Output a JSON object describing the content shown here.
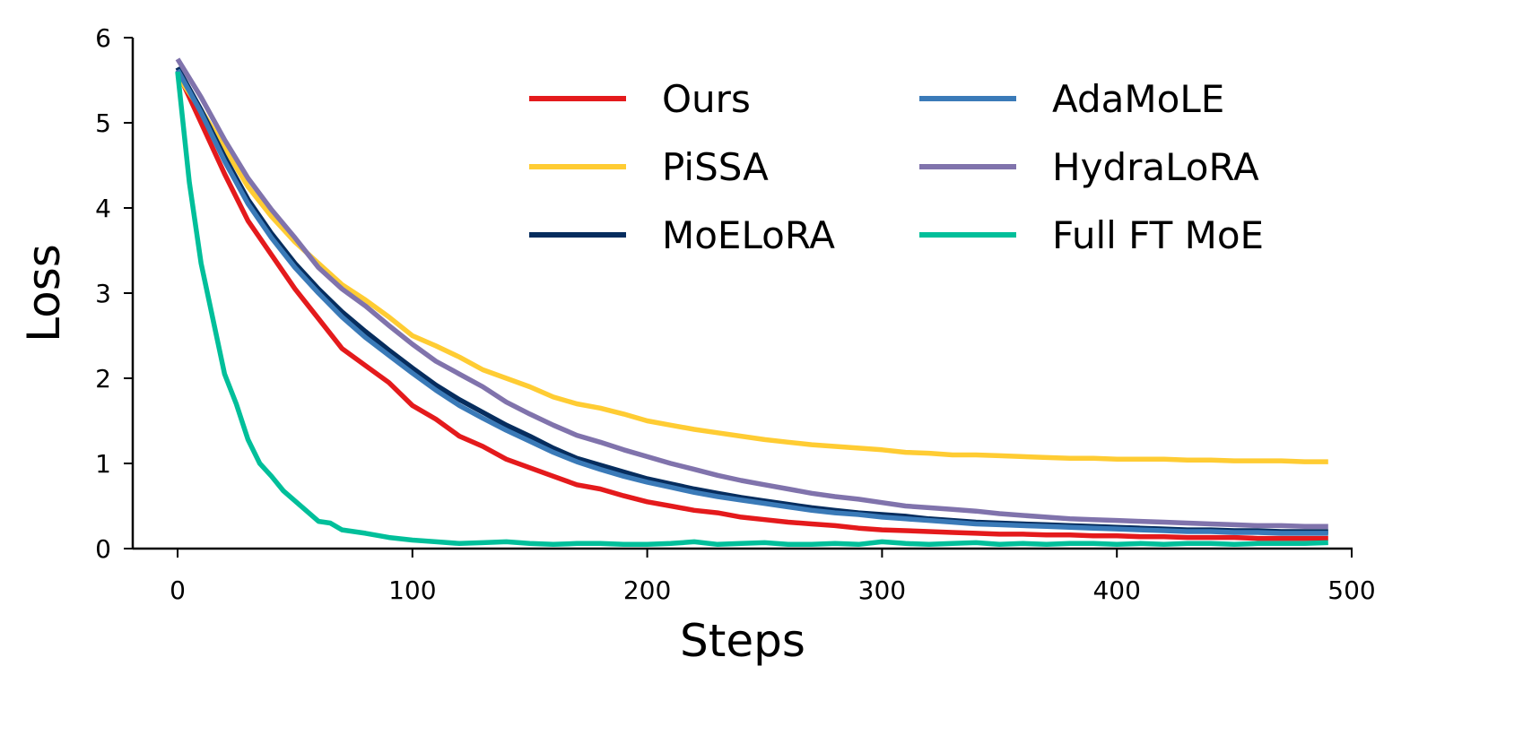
{
  "chart_data": {
    "type": "line",
    "title": "",
    "xlabel": "Steps",
    "ylabel": "Loss",
    "xlim": [
      -20,
      500
    ],
    "ylim": [
      0,
      6
    ],
    "xticks": [
      0,
      100,
      200,
      300,
      400,
      500
    ],
    "yticks": [
      0,
      1,
      2,
      3,
      4,
      5,
      6
    ],
    "grid": false,
    "legend_position": "top-right",
    "series": [
      {
        "name": "Ours",
        "color": "#e41a1c",
        "x": [
          0,
          10,
          20,
          30,
          40,
          50,
          60,
          70,
          80,
          90,
          100,
          110,
          120,
          130,
          140,
          150,
          160,
          170,
          180,
          190,
          200,
          210,
          220,
          230,
          240,
          250,
          260,
          270,
          280,
          290,
          300,
          310,
          320,
          330,
          340,
          350,
          360,
          370,
          380,
          390,
          400,
          410,
          420,
          430,
          440,
          450,
          460,
          470,
          480,
          490
        ],
        "y": [
          5.6,
          5.0,
          4.4,
          3.85,
          3.45,
          3.05,
          2.7,
          2.35,
          2.15,
          1.95,
          1.68,
          1.52,
          1.32,
          1.2,
          1.05,
          0.95,
          0.85,
          0.75,
          0.7,
          0.62,
          0.55,
          0.5,
          0.45,
          0.42,
          0.37,
          0.34,
          0.31,
          0.29,
          0.27,
          0.24,
          0.22,
          0.21,
          0.2,
          0.19,
          0.18,
          0.17,
          0.17,
          0.16,
          0.16,
          0.15,
          0.15,
          0.14,
          0.14,
          0.13,
          0.13,
          0.13,
          0.12,
          0.12,
          0.12,
          0.12
        ]
      },
      {
        "name": "PiSSA",
        "color": "#ffcc33",
        "x": [
          0,
          10,
          20,
          30,
          40,
          50,
          60,
          70,
          80,
          90,
          100,
          110,
          120,
          130,
          140,
          150,
          160,
          170,
          180,
          190,
          200,
          210,
          220,
          230,
          240,
          250,
          260,
          270,
          280,
          290,
          300,
          310,
          320,
          330,
          340,
          350,
          360,
          370,
          380,
          390,
          400,
          410,
          420,
          430,
          440,
          450,
          460,
          470,
          480,
          490
        ],
        "y": [
          5.55,
          5.15,
          4.7,
          4.25,
          3.9,
          3.6,
          3.35,
          3.1,
          2.92,
          2.72,
          2.5,
          2.38,
          2.25,
          2.1,
          2.0,
          1.9,
          1.78,
          1.7,
          1.65,
          1.58,
          1.5,
          1.45,
          1.4,
          1.36,
          1.32,
          1.28,
          1.25,
          1.22,
          1.2,
          1.18,
          1.16,
          1.13,
          1.12,
          1.1,
          1.1,
          1.09,
          1.08,
          1.07,
          1.06,
          1.06,
          1.05,
          1.05,
          1.05,
          1.04,
          1.04,
          1.03,
          1.03,
          1.03,
          1.02,
          1.02
        ]
      },
      {
        "name": "MoELoRA",
        "color": "#062d5e",
        "x": [
          0,
          10,
          20,
          30,
          40,
          50,
          60,
          70,
          80,
          90,
          100,
          110,
          120,
          130,
          140,
          150,
          160,
          170,
          180,
          190,
          200,
          210,
          220,
          230,
          240,
          250,
          260,
          270,
          280,
          290,
          300,
          310,
          320,
          330,
          340,
          350,
          360,
          370,
          380,
          390,
          400,
          410,
          420,
          430,
          440,
          450,
          460,
          470,
          480,
          490
        ],
        "y": [
          5.65,
          5.15,
          4.6,
          4.1,
          3.7,
          3.35,
          3.05,
          2.78,
          2.55,
          2.33,
          2.12,
          1.92,
          1.75,
          1.6,
          1.45,
          1.32,
          1.18,
          1.06,
          0.98,
          0.9,
          0.82,
          0.76,
          0.7,
          0.65,
          0.6,
          0.56,
          0.52,
          0.48,
          0.45,
          0.42,
          0.4,
          0.38,
          0.35,
          0.33,
          0.31,
          0.3,
          0.29,
          0.28,
          0.27,
          0.26,
          0.25,
          0.24,
          0.23,
          0.22,
          0.22,
          0.21,
          0.21,
          0.2,
          0.2,
          0.2
        ]
      },
      {
        "name": "AdaMoLE",
        "color": "#3a7ab8",
        "x": [
          0,
          10,
          20,
          30,
          40,
          50,
          60,
          70,
          80,
          90,
          100,
          110,
          120,
          130,
          140,
          150,
          160,
          170,
          180,
          190,
          200,
          210,
          220,
          230,
          240,
          250,
          260,
          270,
          280,
          290,
          300,
          310,
          320,
          330,
          340,
          350,
          360,
          370,
          380,
          390,
          400,
          410,
          420,
          430,
          440,
          450,
          460,
          470,
          480,
          490
        ],
        "y": [
          5.62,
          5.12,
          4.55,
          4.05,
          3.65,
          3.3,
          3.0,
          2.72,
          2.48,
          2.27,
          2.06,
          1.86,
          1.68,
          1.53,
          1.39,
          1.26,
          1.13,
          1.02,
          0.93,
          0.85,
          0.78,
          0.72,
          0.66,
          0.61,
          0.57,
          0.53,
          0.49,
          0.45,
          0.42,
          0.4,
          0.37,
          0.35,
          0.33,
          0.31,
          0.29,
          0.28,
          0.27,
          0.26,
          0.25,
          0.24,
          0.23,
          0.22,
          0.21,
          0.2,
          0.2,
          0.19,
          0.19,
          0.18,
          0.18,
          0.18
        ]
      },
      {
        "name": "HydraLoRA",
        "color": "#8073ac",
        "x": [
          0,
          10,
          20,
          30,
          40,
          50,
          60,
          70,
          80,
          90,
          100,
          110,
          120,
          130,
          140,
          150,
          160,
          170,
          180,
          190,
          200,
          210,
          220,
          230,
          240,
          250,
          260,
          270,
          280,
          290,
          300,
          310,
          320,
          330,
          340,
          350,
          360,
          370,
          380,
          390,
          400,
          410,
          420,
          430,
          440,
          450,
          460,
          470,
          480,
          490
        ],
        "y": [
          5.75,
          5.3,
          4.8,
          4.35,
          3.98,
          3.65,
          3.3,
          3.05,
          2.85,
          2.62,
          2.4,
          2.2,
          2.05,
          1.9,
          1.72,
          1.58,
          1.45,
          1.33,
          1.25,
          1.16,
          1.08,
          1.0,
          0.93,
          0.86,
          0.8,
          0.75,
          0.7,
          0.65,
          0.61,
          0.58,
          0.54,
          0.5,
          0.48,
          0.46,
          0.44,
          0.41,
          0.39,
          0.37,
          0.35,
          0.34,
          0.33,
          0.32,
          0.31,
          0.3,
          0.29,
          0.28,
          0.27,
          0.27,
          0.26,
          0.26
        ]
      },
      {
        "name": "Full FT MoE",
        "color": "#00bf9a",
        "x": [
          0,
          5,
          10,
          15,
          20,
          25,
          30,
          35,
          40,
          45,
          50,
          55,
          60,
          65,
          70,
          80,
          90,
          100,
          110,
          120,
          130,
          140,
          150,
          160,
          170,
          180,
          190,
          200,
          210,
          220,
          230,
          240,
          250,
          260,
          270,
          280,
          290,
          300,
          310,
          320,
          330,
          340,
          350,
          360,
          370,
          380,
          390,
          400,
          410,
          420,
          430,
          440,
          450,
          460,
          470,
          480,
          490
        ],
        "y": [
          5.6,
          4.3,
          3.35,
          2.7,
          2.05,
          1.7,
          1.28,
          1.0,
          0.85,
          0.68,
          0.56,
          0.44,
          0.32,
          0.3,
          0.22,
          0.18,
          0.13,
          0.1,
          0.08,
          0.06,
          0.07,
          0.08,
          0.06,
          0.05,
          0.06,
          0.06,
          0.05,
          0.05,
          0.06,
          0.08,
          0.05,
          0.06,
          0.07,
          0.05,
          0.05,
          0.06,
          0.05,
          0.08,
          0.06,
          0.05,
          0.06,
          0.07,
          0.05,
          0.06,
          0.05,
          0.06,
          0.06,
          0.05,
          0.06,
          0.05,
          0.06,
          0.06,
          0.05,
          0.06,
          0.06,
          0.06,
          0.07
        ]
      }
    ]
  }
}
